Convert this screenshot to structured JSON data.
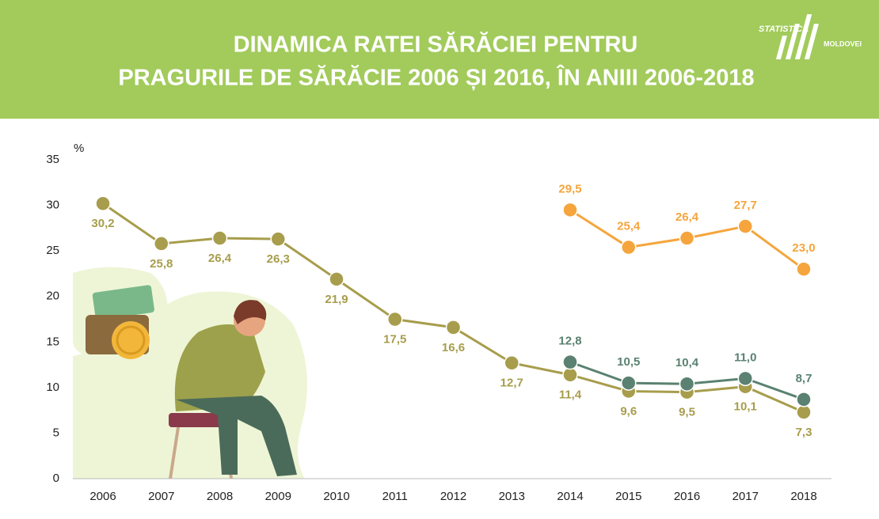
{
  "header": {
    "title_lines": [
      "DINAMICA RATEI SĂRĂCIEI PENTRU",
      "PRAGURILE DE SĂRĂCIE 2006 ȘI 2016, ÎN ANIII 2006-2018"
    ],
    "logo": [
      "STATISTICA",
      "MOLDOVEI"
    ]
  },
  "chart_data": {
    "type": "line",
    "y_unit": "%",
    "categories": [
      "2006",
      "2007",
      "2008",
      "2009",
      "2010",
      "2011",
      "2012",
      "2013",
      "2014",
      "2015",
      "2016",
      "2017",
      "2018"
    ],
    "series": [
      {
        "color": "#a79d4c",
        "label_position": "below",
        "values": [
          30.2,
          25.8,
          26.4,
          26.3,
          21.9,
          17.5,
          16.6,
          12.7,
          11.4,
          9.6,
          9.5,
          10.1,
          7.3
        ],
        "value_labels": [
          "30,2",
          "25,8",
          "26,4",
          "26,3",
          "21,9",
          "17,5",
          "16,6",
          "12,7",
          "11,4",
          "9,6",
          "9,5",
          "10,1",
          "7,3"
        ]
      },
      {
        "color": "#5a8171",
        "label_position": "above",
        "values": [
          null,
          null,
          null,
          null,
          null,
          null,
          null,
          null,
          12.8,
          10.5,
          10.4,
          11.0,
          8.7
        ],
        "value_labels": [
          null,
          null,
          null,
          null,
          null,
          null,
          null,
          null,
          "12,8",
          "10,5",
          "10,4",
          "11,0",
          "8,7"
        ]
      },
      {
        "color": "#f5a53c",
        "label_position": "above",
        "values": [
          null,
          null,
          null,
          null,
          null,
          null,
          null,
          null,
          29.5,
          25.4,
          26.4,
          27.7,
          23.0
        ],
        "value_labels": [
          null,
          null,
          null,
          null,
          null,
          null,
          null,
          null,
          "29,5",
          "25,4",
          "26,4",
          "27,7",
          "23,0"
        ]
      }
    ],
    "ylim": [
      0,
      35
    ],
    "yticks": [
      0,
      5,
      10,
      15,
      20,
      25,
      30,
      35
    ],
    "grid": false
  }
}
